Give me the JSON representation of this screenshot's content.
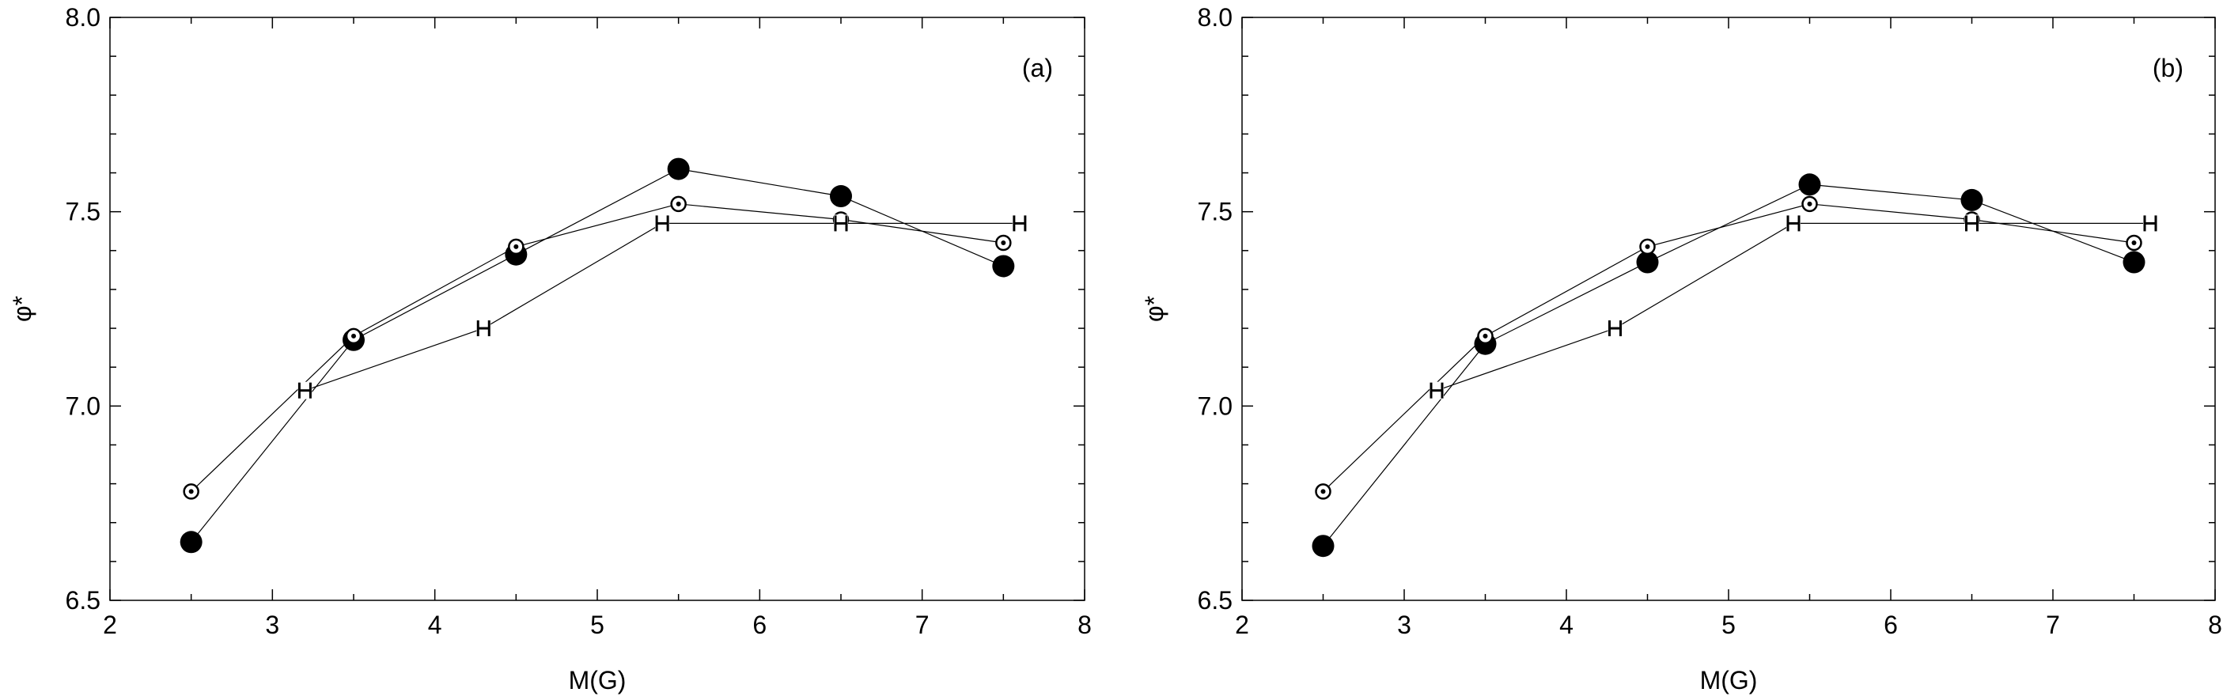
{
  "chart_data": [
    {
      "type": "line",
      "panel_label": "(a)",
      "xlabel": "M(G)",
      "ylabel": "φ*",
      "xlim": [
        2,
        8
      ],
      "ylim": [
        6.5,
        8.0
      ],
      "x_ticks": [
        "2",
        "3",
        "4",
        "5",
        "6",
        "7",
        "8"
      ],
      "y_ticks": [
        "6.5",
        "7.0",
        "7.5",
        "8.0"
      ],
      "grid": false,
      "series": [
        {
          "marker": "filled-circle",
          "x": [
            2.5,
            3.5,
            4.5,
            5.5,
            6.5,
            7.5
          ],
          "y": [
            6.65,
            7.17,
            7.39,
            7.61,
            7.54,
            7.36
          ]
        },
        {
          "marker": "dotted-circle",
          "x": [
            2.5,
            3.5,
            4.5,
            5.5,
            6.5,
            7.5
          ],
          "y": [
            6.78,
            7.18,
            7.41,
            7.52,
            7.48,
            7.42
          ]
        },
        {
          "marker": "H",
          "x": [
            3.2,
            4.3,
            5.4,
            6.5,
            7.6
          ],
          "y": [
            7.04,
            7.2,
            7.47,
            7.47,
            7.47
          ]
        }
      ]
    },
    {
      "type": "line",
      "panel_label": "(b)",
      "xlabel": "M(G)",
      "ylabel": "φ*",
      "xlim": [
        2,
        8
      ],
      "ylim": [
        6.5,
        8.0
      ],
      "x_ticks": [
        "2",
        "3",
        "4",
        "5",
        "6",
        "7",
        "8"
      ],
      "y_ticks": [
        "6.5",
        "7.0",
        "7.5",
        "8.0"
      ],
      "grid": false,
      "series": [
        {
          "marker": "filled-circle",
          "x": [
            2.5,
            3.5,
            4.5,
            5.5,
            6.5,
            7.5
          ],
          "y": [
            6.64,
            7.16,
            7.37,
            7.57,
            7.53,
            7.37
          ]
        },
        {
          "marker": "dotted-circle",
          "x": [
            2.5,
            3.5,
            4.5,
            5.5,
            6.5,
            7.5
          ],
          "y": [
            6.78,
            7.18,
            7.41,
            7.52,
            7.48,
            7.42
          ]
        },
        {
          "marker": "H",
          "x": [
            3.2,
            4.3,
            5.4,
            6.5,
            7.6
          ],
          "y": [
            7.04,
            7.2,
            7.47,
            7.47,
            7.47
          ]
        }
      ]
    }
  ]
}
